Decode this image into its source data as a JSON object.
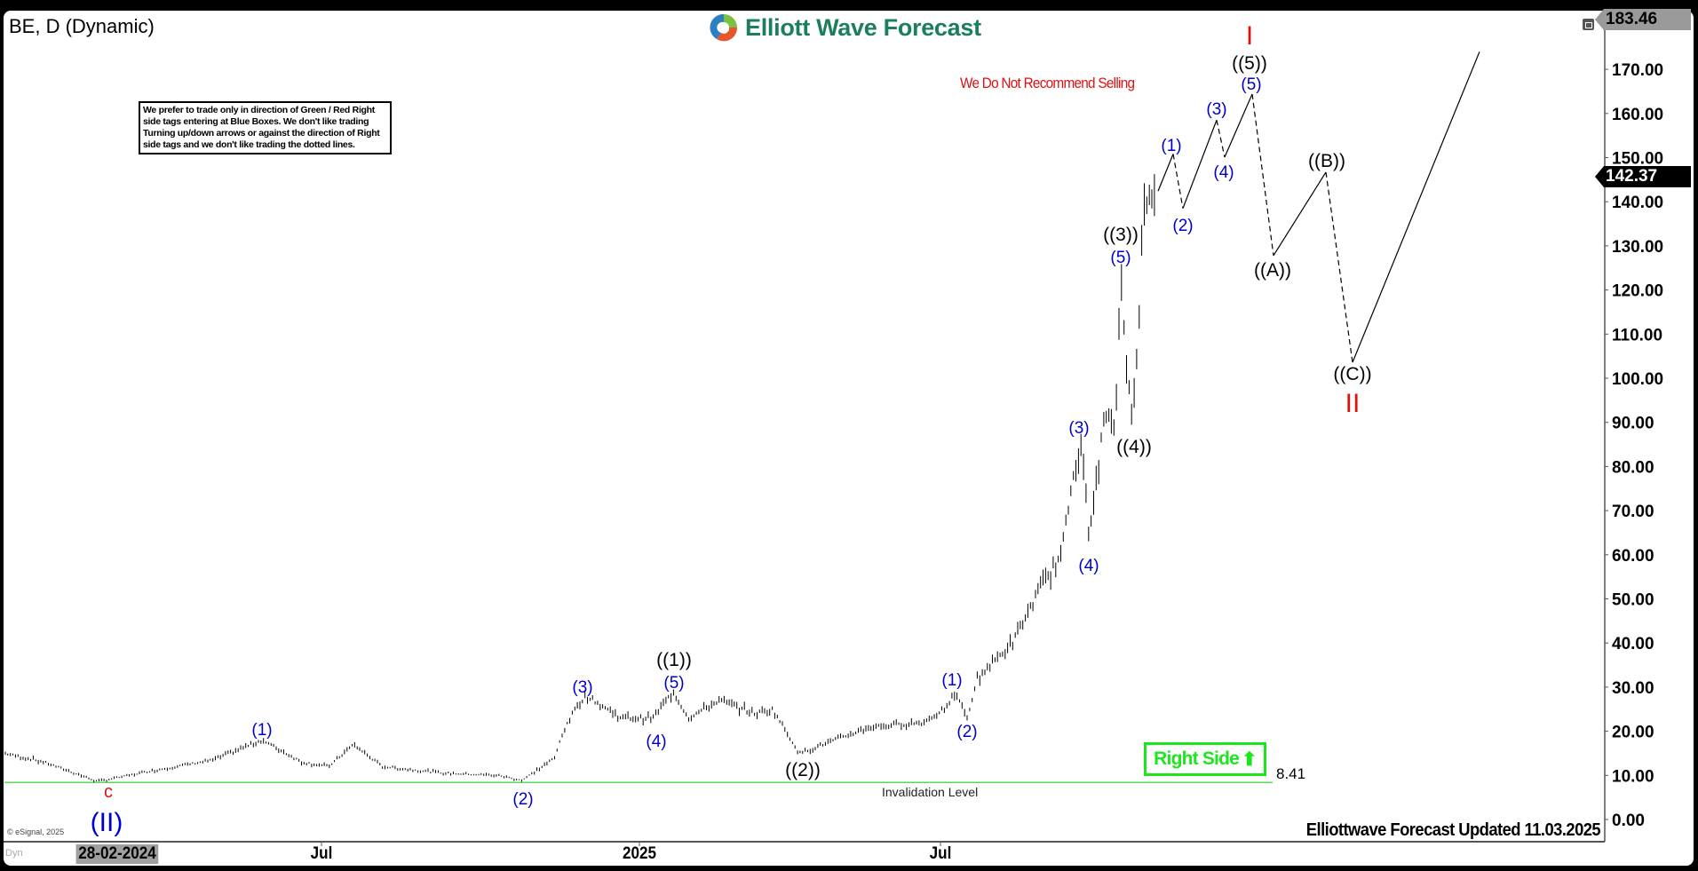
{
  "header": {
    "title": "BE, D (Dynamic)",
    "logo_text": "Elliott Wave Forecast",
    "disclaimer": "We prefer to trade only in direction of Green / Red Right side tags entering at Blue Boxes. We don't like trading Turning up/down arrows or against the direction of Right side tags and we don't like trading the dotted lines.",
    "warning": "We Do Not Recommend Selling"
  },
  "footer": {
    "updated": "Elliottwave Forecast Updated 11.03.2025",
    "copyright": "© eSignal, 2025",
    "dyn": "Dyn"
  },
  "right_side_tag": {
    "label": "Right Side",
    "direction": "up",
    "color": "#1ee61e"
  },
  "invalidation": {
    "label": "Invalidation Level",
    "value_label": "8.41",
    "value": 8.41,
    "color": "#22cc22"
  },
  "price_tags": {
    "high": "183.46",
    "last": "142.37"
  },
  "colors": {
    "wave_blue": "#0000cc",
    "wave_black": "#000000",
    "wave_red": "#e01010",
    "bars": "#000000"
  },
  "chart_data": {
    "type": "ohlc-bar",
    "symbol": "BE",
    "interval": "D",
    "ylim": [
      0,
      183.46
    ],
    "y_ticks": [
      "0.00",
      "10.00",
      "20.00",
      "30.00",
      "40.00",
      "50.00",
      "60.00",
      "70.00",
      "80.00",
      "90.00",
      "100.00",
      "110.00",
      "120.00",
      "130.00",
      "140.00",
      "150.00",
      "160.00",
      "170.00"
    ],
    "x_ticks": [
      "28-02-2024",
      "Jul",
      "2025",
      "Jul"
    ],
    "last_price": 142.37,
    "grid": false,
    "wave_labels": [
      {
        "text": "c",
        "color": "red",
        "price": 8.4
      },
      {
        "text": "(II)",
        "color": "blue",
        "price": 8.4
      },
      {
        "text": "(1)",
        "color": "blue",
        "price": 18
      },
      {
        "text": "(2)",
        "color": "blue",
        "price": 8.9
      },
      {
        "text": "(3)",
        "color": "blue",
        "price": 28.5
      },
      {
        "text": "(4)",
        "color": "blue",
        "price": 21
      },
      {
        "text": "(5)",
        "color": "blue",
        "price": 29.5
      },
      {
        "text": "((1))",
        "color": "black",
        "price": 29.5
      },
      {
        "text": "((2))",
        "color": "black",
        "price": 14.5
      },
      {
        "text": "(1)",
        "color": "blue",
        "price": 29
      },
      {
        "text": "(2)",
        "color": "blue",
        "price": 22.5
      },
      {
        "text": "(3)",
        "color": "blue",
        "price": 87
      },
      {
        "text": "(4)",
        "color": "blue",
        "price": 62
      },
      {
        "text": "(5)",
        "color": "blue",
        "price": 126
      },
      {
        "text": "((3))",
        "color": "black",
        "price": 126
      },
      {
        "text": "((4))",
        "color": "black",
        "price": 88
      },
      {
        "text": "(1)",
        "color": "blue",
        "price": 150
      },
      {
        "text": "(2)",
        "color": "blue",
        "price": 138
      },
      {
        "text": "(3)",
        "color": "blue",
        "price": 158
      },
      {
        "text": "(4)",
        "color": "blue",
        "price": 150
      },
      {
        "text": "(5)",
        "color": "blue",
        "price": 165
      },
      {
        "text": "((5))",
        "color": "black",
        "price": 165
      },
      {
        "text": "I",
        "color": "red",
        "price": 165
      },
      {
        "text": "((A))",
        "color": "black",
        "price": 128
      },
      {
        "text": "((B))",
        "color": "black",
        "price": 147
      },
      {
        "text": "((C))",
        "color": "black",
        "price": 104
      },
      {
        "text": "II",
        "color": "red",
        "price": 104
      }
    ],
    "projection": [
      {
        "label": "start",
        "price": 142.4,
        "style": "solid"
      },
      {
        "label": "(1)",
        "price": 150.8,
        "style": "dashed"
      },
      {
        "label": "(2)",
        "price": 138.5,
        "style": "solid"
      },
      {
        "label": "(3)",
        "price": 158.5,
        "style": "dashed"
      },
      {
        "label": "(4)",
        "price": 150.1,
        "style": "solid"
      },
      {
        "label": "(5)",
        "price": 164.4,
        "style": "dashed"
      },
      {
        "label": "((A))",
        "price": 127.8,
        "style": "solid"
      },
      {
        "label": "((B))",
        "price": 146.7,
        "style": "dashed"
      },
      {
        "label": "((C))",
        "price": 103.6,
        "style": "solid"
      },
      {
        "label": "end",
        "price": 174.0,
        "style": "solid"
      }
    ]
  }
}
